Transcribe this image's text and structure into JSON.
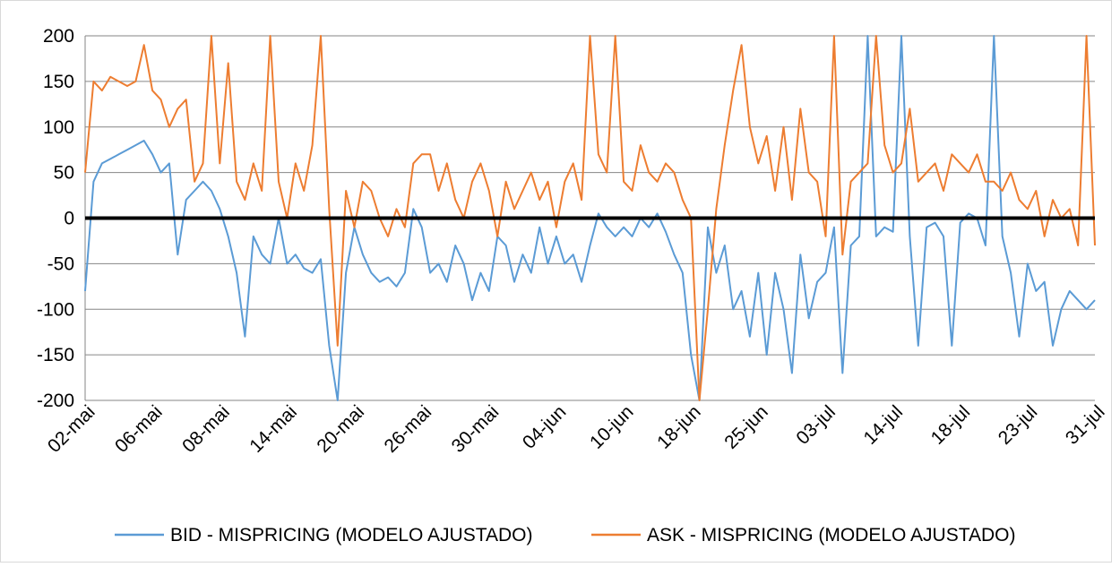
{
  "chart_data": {
    "type": "line",
    "categories": [
      "02-mai",
      null,
      null,
      null,
      null,
      null,
      null,
      null,
      "06-mai",
      null,
      null,
      null,
      null,
      null,
      null,
      null,
      "08-mai",
      null,
      null,
      null,
      null,
      null,
      null,
      null,
      "14-mai",
      null,
      null,
      null,
      null,
      null,
      null,
      null,
      "20-mai",
      null,
      null,
      null,
      null,
      null,
      null,
      null,
      "26-mai",
      null,
      null,
      null,
      null,
      null,
      null,
      null,
      "30-mai",
      null,
      null,
      null,
      null,
      null,
      null,
      null,
      "04-jun",
      null,
      null,
      null,
      null,
      null,
      null,
      null,
      "10-jun",
      null,
      null,
      null,
      null,
      null,
      null,
      null,
      "18-jun",
      null,
      null,
      null,
      null,
      null,
      null,
      null,
      "25-jun",
      null,
      null,
      null,
      null,
      null,
      null,
      null,
      "03-jul",
      null,
      null,
      null,
      null,
      null,
      null,
      null,
      "14-jul",
      null,
      null,
      null,
      null,
      null,
      null,
      null,
      "18-jul",
      null,
      null,
      null,
      null,
      null,
      null,
      null,
      "23-jul",
      null,
      null,
      null,
      null,
      null,
      null,
      null,
      "31-jul"
    ],
    "series": [
      {
        "name": "BID - MISPRICING (MODELO AJUSTADO)",
        "color": "#5b9bd5",
        "values": [
          -80,
          40,
          60,
          65,
          70,
          75,
          80,
          85,
          70,
          50,
          60,
          -40,
          20,
          30,
          40,
          30,
          10,
          -20,
          -60,
          -130,
          -20,
          -40,
          -50,
          0,
          -50,
          -40,
          -55,
          -60,
          -45,
          -140,
          -200,
          -60,
          -10,
          -40,
          -60,
          -70,
          -65,
          -75,
          -60,
          10,
          -10,
          -60,
          -50,
          -70,
          -30,
          -50,
          -90,
          -60,
          -80,
          -20,
          -30,
          -70,
          -40,
          -60,
          -10,
          -50,
          -20,
          -50,
          -40,
          -70,
          -30,
          5,
          -10,
          -20,
          -10,
          -20,
          0,
          -10,
          5,
          -15,
          -40,
          -60,
          -150,
          -200,
          -10,
          -60,
          -30,
          -100,
          -80,
          -130,
          -60,
          -150,
          -60,
          -100,
          -170,
          -40,
          -110,
          -70,
          -60,
          -10,
          -170,
          -30,
          -20,
          200,
          -20,
          -10,
          -15,
          200,
          -20,
          -140,
          -10,
          -5,
          -20,
          -140,
          -5,
          5,
          0,
          -30,
          200,
          -20,
          -60,
          -130,
          -50,
          -80,
          -70,
          -140,
          -100,
          -80,
          -90,
          -100,
          -90
        ]
      },
      {
        "name": "ASK - MISPRICING (MODELO AJUSTADO)",
        "color": "#ed7d31",
        "values": [
          50,
          150,
          140,
          155,
          150,
          145,
          150,
          190,
          140,
          130,
          100,
          120,
          130,
          40,
          60,
          200,
          60,
          170,
          40,
          20,
          60,
          30,
          200,
          40,
          0,
          60,
          30,
          80,
          200,
          10,
          -140,
          30,
          -10,
          40,
          30,
          0,
          -20,
          10,
          -10,
          60,
          70,
          70,
          30,
          60,
          20,
          0,
          40,
          60,
          30,
          -20,
          40,
          10,
          30,
          50,
          20,
          40,
          -10,
          40,
          60,
          20,
          200,
          70,
          50,
          200,
          40,
          30,
          80,
          50,
          40,
          60,
          50,
          20,
          0,
          -200,
          -100,
          10,
          80,
          140,
          190,
          100,
          60,
          90,
          30,
          100,
          20,
          120,
          50,
          40,
          -20,
          200,
          -40,
          40,
          50,
          60,
          200,
          80,
          50,
          60,
          120,
          40,
          50,
          60,
          30,
          70,
          60,
          50,
          70,
          40,
          40,
          30,
          50,
          20,
          10,
          30,
          -20,
          20,
          0,
          10,
          -30,
          200,
          -30
        ]
      }
    ],
    "ylim": [
      -200,
      200
    ],
    "yticks": [
      -200,
      -150,
      -100,
      -50,
      0,
      50,
      100,
      150,
      200
    ],
    "grid": true,
    "legend": "bottom"
  }
}
